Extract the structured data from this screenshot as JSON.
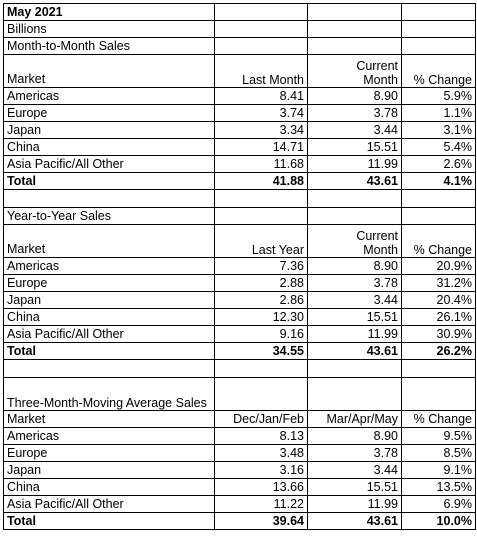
{
  "title": "May 2021",
  "units": "Billions",
  "sections": [
    {
      "heading": "Month-to-Month Sales",
      "columns": [
        "Market",
        "Last Month",
        "Current Month",
        "% Change"
      ],
      "rows": [
        [
          "Americas",
          "8.41",
          "8.90",
          "5.9%"
        ],
        [
          "Europe",
          "3.74",
          "3.78",
          "1.1%"
        ],
        [
          "Japan",
          "3.34",
          "3.44",
          "3.1%"
        ],
        [
          "China",
          "14.71",
          "15.51",
          "5.4%"
        ],
        [
          "Asia Pacific/All Other",
          "11.68",
          "11.99",
          "2.6%"
        ]
      ],
      "total": [
        "Total",
        "41.88",
        "43.61",
        "4.1%"
      ]
    },
    {
      "heading": "Year-to-Year Sales",
      "columns": [
        "Market",
        "Last Year",
        "Current Month",
        "% Change"
      ],
      "rows": [
        [
          "Americas",
          "7.36",
          "8.90",
          "20.9%"
        ],
        [
          "Europe",
          "2.88",
          "3.78",
          "31.2%"
        ],
        [
          "Japan",
          "2.86",
          "3.44",
          "20.4%"
        ],
        [
          "China",
          "12.30",
          "15.51",
          "26.1%"
        ],
        [
          "Asia Pacific/All Other",
          "9.16",
          "11.99",
          "30.9%"
        ]
      ],
      "total": [
        "Total",
        "34.55",
        "43.61",
        "26.2%"
      ]
    },
    {
      "heading": "Three-Month-Moving Average Sales",
      "columns": [
        "Market",
        "Dec/Jan/Feb",
        "Mar/Apr/May",
        "% Change"
      ],
      "rows": [
        [
          "Americas",
          "8.13",
          "8.90",
          "9.5%"
        ],
        [
          "Europe",
          "3.48",
          "3.78",
          "8.5%"
        ],
        [
          "Japan",
          "3.16",
          "3.44",
          "9.1%"
        ],
        [
          "China",
          "13.66",
          "15.51",
          "13.5%"
        ],
        [
          "Asia Pacific/All Other",
          "11.22",
          "11.99",
          "6.9%"
        ]
      ],
      "total": [
        "Total",
        "39.64",
        "43.61",
        "10.0%"
      ]
    }
  ]
}
